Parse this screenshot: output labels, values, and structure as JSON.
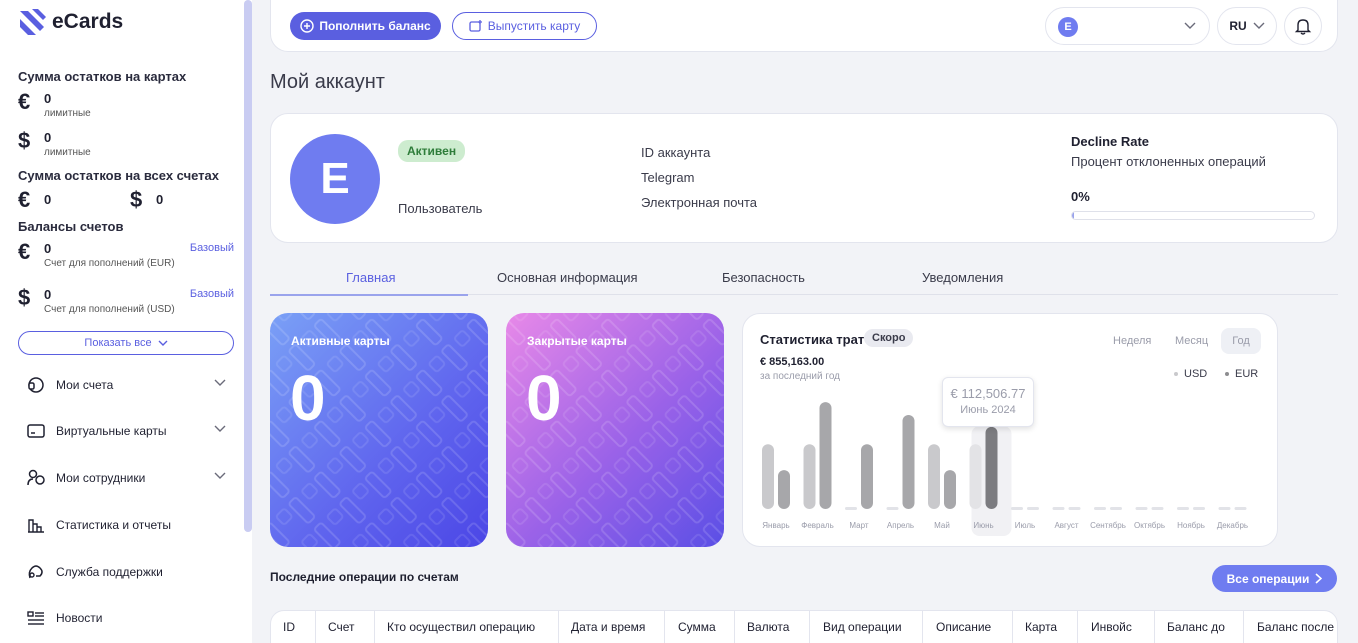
{
  "brand": {
    "name": "eCards"
  },
  "sidebar": {
    "cards_total": {
      "title": "Сумма остатков на картах",
      "eur": {
        "symbol": "€",
        "value": "0",
        "sub": "лимитные"
      },
      "usd": {
        "symbol": "$",
        "value": "0",
        "sub": "лимитные"
      }
    },
    "accounts_total": {
      "title": "Сумма остатков на всех счетах",
      "eur": {
        "symbol": "€",
        "value": "0"
      },
      "usd": {
        "symbol": "$",
        "value": "0"
      }
    },
    "balances": {
      "title": "Балансы счетов",
      "items": [
        {
          "symbol": "€",
          "value": "0",
          "sub": "Счет для пополнений (EUR)",
          "badge": "Базовый"
        },
        {
          "symbol": "$",
          "value": "0",
          "sub": "Счет для пополнений (USD)",
          "badge": "Базовый"
        }
      ]
    },
    "show_all": "Показать все",
    "nav": [
      {
        "label": "Мои счета",
        "icon": "wallet-icon"
      },
      {
        "label": "Виртуальные карты",
        "icon": "card-icon"
      },
      {
        "label": "Мои сотрудники",
        "icon": "users-icon"
      },
      {
        "label": "Статистика и отчеты",
        "icon": "stats-icon"
      },
      {
        "label": "Служба поддержки",
        "icon": "support-icon"
      },
      {
        "label": "Новости",
        "icon": "news-icon"
      }
    ]
  },
  "topbar": {
    "topup": "Пополнить баланс",
    "issue_card": "Выпустить карту",
    "account_initial": "E",
    "lang": "RU"
  },
  "page": {
    "title": "Мой аккаунт"
  },
  "profile": {
    "initial": "E",
    "status": "Активен",
    "role": "Пользователь",
    "labels": [
      "ID аккаунта",
      "Telegram",
      "Электронная почта"
    ],
    "decline_rate": {
      "title": "Decline Rate",
      "subtitle": "Процент отклоненных операций",
      "value": "0%",
      "fraction": 0
    }
  },
  "tabs": [
    {
      "label": "Главная",
      "active": true
    },
    {
      "label": "Основная информация",
      "active": false
    },
    {
      "label": "Безопасность",
      "active": false
    },
    {
      "label": "Уведомления",
      "active": false
    }
  ],
  "tiles": {
    "active": {
      "label": "Активные карты",
      "value": "0"
    },
    "closed": {
      "label": "Закрытые карты",
      "value": "0"
    }
  },
  "spending": {
    "title": "Статистика трат",
    "badge": "Скоро",
    "total": "€ 855,163.00",
    "total_sub": "за последний год",
    "periods": [
      "Неделя",
      "Месяц",
      "Год"
    ],
    "active_period": "Год",
    "legend": [
      "USD",
      "EUR"
    ],
    "tooltip": {
      "value": "€ 112,506.77",
      "label": "Июнь 2024"
    }
  },
  "chart_data": {
    "type": "bar",
    "categories": [
      "Январь",
      "Февраль",
      "Март",
      "Апрель",
      "Май",
      "Июнь",
      "Июль",
      "Август",
      "Сентябрь",
      "Октябрь",
      "Ноябрь",
      "Декабрь"
    ],
    "series": [
      {
        "name": "USD",
        "values": [
          0.6,
          0.6,
          0,
          0,
          0.6,
          0.6,
          0,
          0,
          0,
          0,
          0,
          0
        ]
      },
      {
        "name": "EUR",
        "values": [
          0.36,
          0.99,
          0.6,
          0.87,
          0.36,
          0.76,
          0,
          0,
          0,
          0,
          0,
          0
        ]
      }
    ],
    "highlight": "Июнь",
    "colors": {
      "usd": "#c9c9cc",
      "eur": "#a7a7aa",
      "empty": "#e2e3e8"
    }
  },
  "operations": {
    "title": "Последние операции по счетам",
    "all_button": "Все операции",
    "columns": [
      "ID",
      "Счет",
      "Кто осуществил операцию",
      "Дата и время",
      "Сумма",
      "Валюта",
      "Вид операции",
      "Описание",
      "Карта",
      "Инвойс",
      "Баланс до",
      "Баланс после"
    ]
  }
}
